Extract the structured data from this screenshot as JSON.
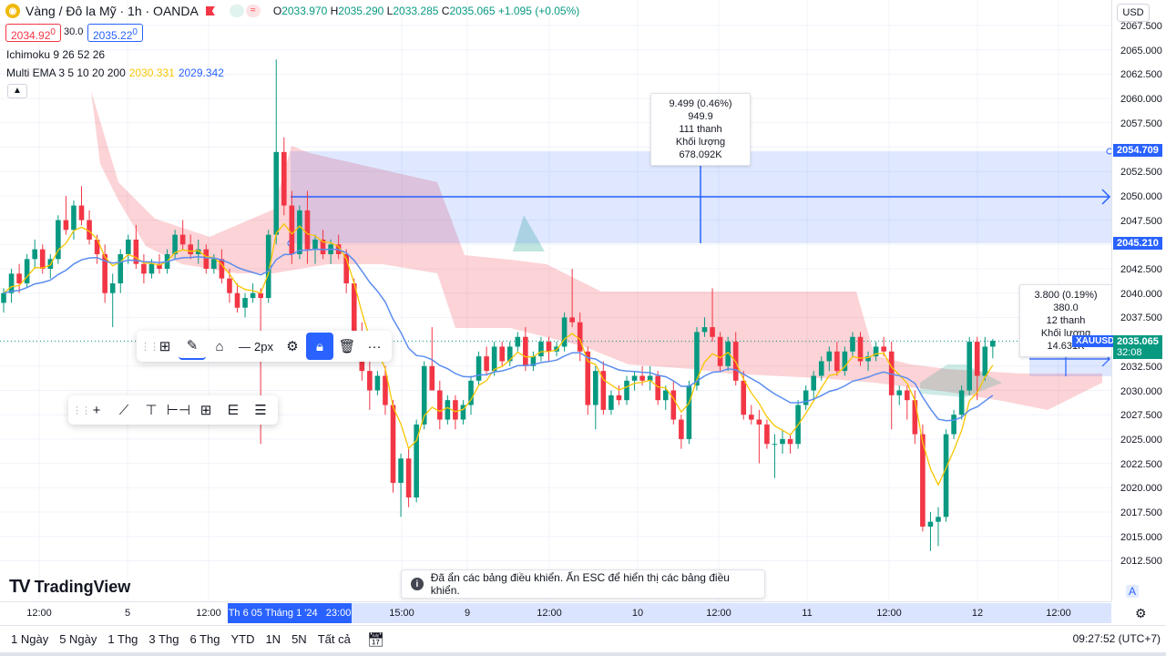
{
  "symbol": {
    "title": "Vàng / Đô la Mỹ · 1h · OANDA",
    "icon": "gold-coin-icon",
    "ohlc": {
      "o_label": "O",
      "o": "2033.970",
      "h_label": "H",
      "h": "2035.290",
      "l_label": "L",
      "l": "2033.285",
      "c_label": "C",
      "c": "2035.065",
      "change": "+1.095 (+0.05%)"
    }
  },
  "trade": {
    "sell": "2034.92",
    "sell_sup": "0",
    "spread": "30.0",
    "buy": "2035.22",
    "buy_sup": "0"
  },
  "indicators": [
    {
      "name": "Ichimoku 9 26 52 26"
    },
    {
      "name": "Multi EMA 3 5 10 20 200",
      "v1": "2030.331",
      "v2": "2029.342"
    }
  ],
  "measure_top": {
    "line1": "9.499 (0.46%) 949.9",
    "line2": "111 thanh",
    "line3": "Khối lượng 678.092K"
  },
  "measure_right": {
    "line1": "3.800 (0.19%) 380.0",
    "line2": "12 thanh",
    "line3": "Khối lượng 14.631K"
  },
  "draw_toolbar": {
    "width_label": "2px"
  },
  "price_axis": {
    "currency": "USD",
    "ticks": [
      "2067.500",
      "2065.000",
      "2062.500",
      "2060.000",
      "2057.500",
      "2055.000",
      "2052.500",
      "2050.000",
      "2047.500",
      "2045.000",
      "2042.500",
      "2040.000",
      "2037.500",
      "2035.000",
      "2032.500",
      "2030.000",
      "2027.500",
      "2025.000",
      "2022.500",
      "2020.000",
      "2017.500",
      "2015.000",
      "2012.500"
    ],
    "tag_upper": "2054.709",
    "tag_lower": "2045.210",
    "tag_symbol": "XAUUSD",
    "tag_price": "2035.065",
    "tag_countdown": "32:08"
  },
  "time_axis": {
    "ticks": [
      "12:00",
      "5",
      "12:00",
      "15:00",
      "9",
      "12:00",
      "10",
      "12:00",
      "11",
      "12:00",
      "12",
      "12:00"
    ],
    "selected": "Th 6 05 Tháng 1 '24",
    "selected_time": "23:00"
  },
  "ranges": [
    "1 Ngày",
    "5 Ngày",
    "1 Thg",
    "3 Thg",
    "6 Thg",
    "YTD",
    "1N",
    "5N",
    "Tất cả"
  ],
  "clock": "09:27:52 (UTC+7)",
  "logo": "TradingView",
  "toast": "Đã ẩn các bảng điều khiển. Ấn ESC để hiển thị các bảng điều khiển.",
  "auto_label": "A",
  "colors": {
    "up": "#089981",
    "down": "#f23645",
    "accent": "#2962ff",
    "ema_fast": "#f7c600",
    "ema_slow": "#5b8def"
  },
  "chart_data": {
    "type": "candlestick",
    "ylim": [
      2010.5,
      2068.5
    ],
    "bars_per_step_px": 6.9,
    "candles": [
      [
        2039.0,
        2040.5,
        2038.0,
        2040.0
      ],
      [
        2040.0,
        2042.5,
        2039.0,
        2042.0
      ],
      [
        2042.0,
        2043.0,
        2040.0,
        2041.0
      ],
      [
        2041.0,
        2044.0,
        2040.5,
        2043.5
      ],
      [
        2043.5,
        2045.5,
        2042.5,
        2044.5
      ],
      [
        2044.5,
        2045.0,
        2042.0,
        2042.5
      ],
      [
        2042.5,
        2044.0,
        2041.5,
        2043.5
      ],
      [
        2043.5,
        2048.0,
        2043.0,
        2047.5
      ],
      [
        2047.5,
        2050.0,
        2046.0,
        2046.5
      ],
      [
        2046.5,
        2049.5,
        2045.5,
        2049.0
      ],
      [
        2049.0,
        2051.0,
        2047.0,
        2047.5
      ],
      [
        2047.5,
        2048.5,
        2045.0,
        2045.5
      ],
      [
        2045.5,
        2046.0,
        2043.0,
        2044.0
      ],
      [
        2044.0,
        2045.0,
        2039.0,
        2040.0
      ],
      [
        2040.0,
        2042.0,
        2036.5,
        2041.0
      ],
      [
        2041.0,
        2044.5,
        2040.0,
        2044.0
      ],
      [
        2044.0,
        2046.0,
        2043.0,
        2045.5
      ],
      [
        2045.5,
        2047.0,
        2042.5,
        2043.0
      ],
      [
        2043.0,
        2044.0,
        2041.0,
        2042.0
      ],
      [
        2042.0,
        2043.5,
        2041.5,
        2043.0
      ],
      [
        2043.0,
        2044.0,
        2042.0,
        2042.5
      ],
      [
        2042.5,
        2044.5,
        2042.0,
        2044.0
      ],
      [
        2044.0,
        2046.5,
        2043.5,
        2046.0
      ],
      [
        2046.0,
        2047.5,
        2044.5,
        2045.0
      ],
      [
        2045.0,
        2046.0,
        2043.5,
        2044.0
      ],
      [
        2044.0,
        2045.5,
        2043.0,
        2044.5
      ],
      [
        2044.5,
        2045.0,
        2042.0,
        2042.5
      ],
      [
        2042.5,
        2044.0,
        2042.0,
        2043.5
      ],
      [
        2043.5,
        2044.5,
        2041.0,
        2041.5
      ],
      [
        2041.5,
        2042.5,
        2039.0,
        2040.0
      ],
      [
        2040.0,
        2041.0,
        2038.0,
        2038.5
      ],
      [
        2038.5,
        2040.0,
        2037.5,
        2039.5
      ],
      [
        2039.5,
        2041.0,
        2039.0,
        2040.0
      ],
      [
        2040.0,
        2040.5,
        2024.5,
        2039.5
      ],
      [
        2039.5,
        2046.5,
        2039.0,
        2046.0
      ],
      [
        2046.0,
        2064.0,
        2045.0,
        2054.5
      ],
      [
        2054.5,
        2056.0,
        2048.0,
        2049.0
      ],
      [
        2049.0,
        2050.5,
        2043.0,
        2044.0
      ],
      [
        2044.0,
        2049.0,
        2043.5,
        2048.5
      ],
      [
        2048.5,
        2050.5,
        2043.0,
        2044.5
      ],
      [
        2044.5,
        2046.0,
        2043.0,
        2045.5
      ],
      [
        2045.5,
        2046.5,
        2043.5,
        2044.0
      ],
      [
        2044.0,
        2045.5,
        2043.0,
        2045.0
      ],
      [
        2045.0,
        2046.0,
        2043.5,
        2044.0
      ],
      [
        2044.0,
        2044.5,
        2040.0,
        2041.0
      ],
      [
        2041.0,
        2041.5,
        2035.5,
        2036.0
      ],
      [
        2036.0,
        2037.0,
        2031.0,
        2032.0
      ],
      [
        2032.0,
        2033.5,
        2028.0,
        2030.0
      ],
      [
        2030.0,
        2032.0,
        2029.5,
        2031.5
      ],
      [
        2031.5,
        2032.5,
        2027.5,
        2028.5
      ],
      [
        2028.5,
        2029.0,
        2019.5,
        2020.5
      ],
      [
        2020.5,
        2023.5,
        2017.0,
        2023.0
      ],
      [
        2023.0,
        2024.0,
        2018.0,
        2019.0
      ],
      [
        2019.0,
        2027.0,
        2018.5,
        2026.5
      ],
      [
        2026.5,
        2033.0,
        2026.0,
        2032.5
      ],
      [
        2032.5,
        2036.5,
        2030.0,
        2030.0
      ],
      [
        2030.0,
        2031.0,
        2026.0,
        2027.0
      ],
      [
        2027.0,
        2029.5,
        2026.5,
        2029.0
      ],
      [
        2029.0,
        2029.5,
        2026.0,
        2027.0
      ],
      [
        2027.0,
        2029.0,
        2026.5,
        2028.5
      ],
      [
        2028.5,
        2031.5,
        2027.5,
        2031.0
      ],
      [
        2031.0,
        2034.0,
        2030.5,
        2033.5
      ],
      [
        2033.5,
        2034.5,
        2031.5,
        2032.0
      ],
      [
        2032.0,
        2035.0,
        2031.5,
        2034.5
      ],
      [
        2034.5,
        2035.0,
        2032.5,
        2033.0
      ],
      [
        2033.0,
        2035.0,
        2032.5,
        2034.5
      ],
      [
        2034.5,
        2036.0,
        2034.0,
        2035.5
      ],
      [
        2035.5,
        2036.5,
        2032.0,
        2032.5
      ],
      [
        2032.5,
        2034.0,
        2032.0,
        2033.5
      ],
      [
        2033.5,
        2035.5,
        2033.0,
        2035.0
      ],
      [
        2035.0,
        2035.5,
        2033.0,
        2034.0
      ],
      [
        2034.0,
        2035.0,
        2033.5,
        2034.5
      ],
      [
        2034.5,
        2038.0,
        2034.0,
        2037.5
      ],
      [
        2037.5,
        2042.5,
        2036.5,
        2037.0
      ],
      [
        2037.0,
        2038.0,
        2033.0,
        2034.0
      ],
      [
        2034.0,
        2034.5,
        2027.5,
        2028.5
      ],
      [
        2028.5,
        2032.5,
        2026.0,
        2032.0
      ],
      [
        2032.0,
        2033.0,
        2027.5,
        2028.0
      ],
      [
        2028.0,
        2030.0,
        2027.5,
        2029.5
      ],
      [
        2029.5,
        2030.5,
        2028.5,
        2029.0
      ],
      [
        2029.0,
        2031.5,
        2028.5,
        2031.0
      ],
      [
        2031.0,
        2032.0,
        2030.0,
        2031.5
      ],
      [
        2031.5,
        2032.5,
        2030.5,
        2031.0
      ],
      [
        2031.0,
        2032.5,
        2030.0,
        2031.5
      ],
      [
        2031.5,
        2032.0,
        2028.5,
        2029.0
      ],
      [
        2029.0,
        2030.5,
        2028.0,
        2030.0
      ],
      [
        2030.0,
        2031.0,
        2026.5,
        2027.0
      ],
      [
        2027.0,
        2027.5,
        2024.0,
        2025.0
      ],
      [
        2025.0,
        2031.0,
        2024.5,
        2030.5
      ],
      [
        2030.5,
        2036.5,
        2030.0,
        2036.0
      ],
      [
        2036.0,
        2037.5,
        2035.5,
        2036.5
      ],
      [
        2036.5,
        2040.5,
        2035.0,
        2035.5
      ],
      [
        2035.5,
        2036.0,
        2032.0,
        2032.5
      ],
      [
        2032.5,
        2035.5,
        2032.0,
        2035.0
      ],
      [
        2035.0,
        2036.0,
        2030.5,
        2031.0
      ],
      [
        2031.0,
        2032.0,
        2027.0,
        2027.5
      ],
      [
        2027.5,
        2028.5,
        2026.5,
        2027.0
      ],
      [
        2027.0,
        2028.0,
        2022.5,
        2026.5
      ],
      [
        2026.5,
        2027.0,
        2024.0,
        2024.5
      ],
      [
        2024.5,
        2025.5,
        2021.0,
        2024.5
      ],
      [
        2024.5,
        2026.0,
        2023.5,
        2025.0
      ],
      [
        2025.0,
        2025.5,
        2023.5,
        2024.5
      ],
      [
        2024.5,
        2029.0,
        2024.0,
        2028.5
      ],
      [
        2028.5,
        2030.5,
        2028.0,
        2030.0
      ],
      [
        2030.0,
        2032.0,
        2029.0,
        2031.5
      ],
      [
        2031.5,
        2033.5,
        2031.0,
        2033.0
      ],
      [
        2033.0,
        2034.5,
        2032.0,
        2034.0
      ],
      [
        2034.0,
        2035.0,
        2031.5,
        2032.0
      ],
      [
        2032.0,
        2034.5,
        2031.5,
        2034.0
      ],
      [
        2034.0,
        2036.0,
        2033.5,
        2035.5
      ],
      [
        2035.5,
        2036.0,
        2032.5,
        2033.0
      ],
      [
        2033.0,
        2034.0,
        2032.0,
        2033.5
      ],
      [
        2033.5,
        2035.0,
        2033.0,
        2034.5
      ],
      [
        2034.5,
        2035.5,
        2033.5,
        2034.0
      ],
      [
        2034.0,
        2035.0,
        2026.0,
        2029.5
      ],
      [
        2029.5,
        2030.5,
        2028.5,
        2030.0
      ],
      [
        2030.0,
        2030.5,
        2027.0,
        2029.0
      ],
      [
        2029.0,
        2030.0,
        2024.5,
        2025.5
      ],
      [
        2025.5,
        2026.5,
        2015.5,
        2016.0
      ],
      [
        2016.0,
        2017.5,
        2013.5,
        2016.5
      ],
      [
        2016.5,
        2018.0,
        2014.0,
        2017.0
      ],
      [
        2017.0,
        2026.0,
        2016.5,
        2025.5
      ],
      [
        2025.5,
        2028.0,
        2025.0,
        2027.5
      ],
      [
        2027.5,
        2030.5,
        2027.0,
        2030.0
      ],
      [
        2030.0,
        2035.5,
        2029.5,
        2035.0
      ],
      [
        2035.0,
        2035.5,
        2029.0,
        2031.5
      ],
      [
        2031.5,
        2035.5,
        2031.0,
        2034.5
      ],
      [
        2034.5,
        2035.3,
        2033.3,
        2035.1
      ]
    ]
  }
}
